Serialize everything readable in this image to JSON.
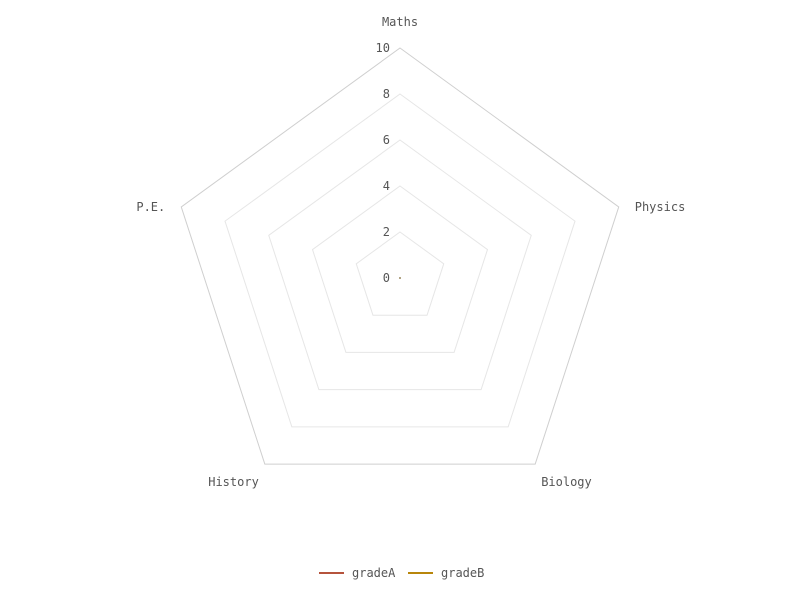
{
  "chart_data": {
    "type": "radar",
    "axes": [
      "Maths",
      "Physics",
      "Biology",
      "History",
      "P.E."
    ],
    "rlim": [
      0,
      10
    ],
    "ticks": [
      "0",
      "2",
      "4",
      "6",
      "8",
      "10"
    ],
    "grid": true,
    "legend_placement": "bottom-center",
    "series": [
      {
        "name": "gradeA",
        "color": "#b5533c",
        "values": [
          0,
          0,
          0,
          0,
          0
        ]
      },
      {
        "name": "gradeB",
        "color": "#b8860b",
        "values": [
          0,
          0,
          0,
          0,
          0
        ]
      }
    ]
  }
}
